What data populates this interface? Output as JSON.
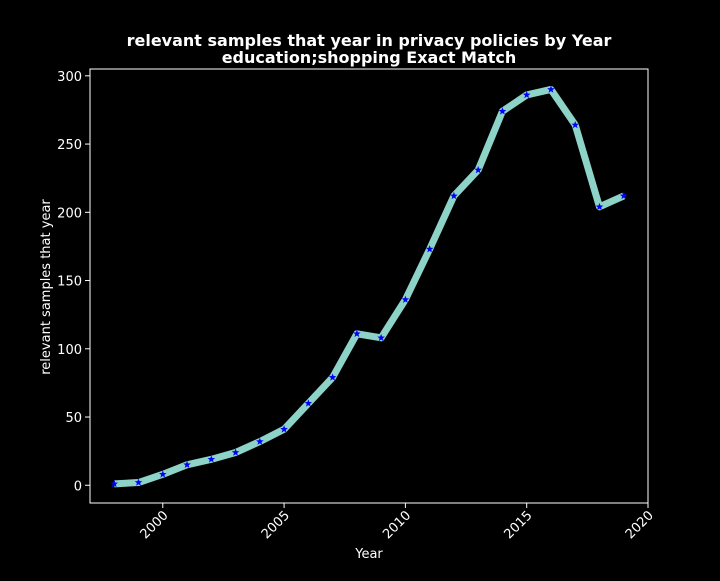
{
  "chart_data": {
    "type": "line",
    "title": "relevant samples that year in privacy policies by Year",
    "subtitle": "education;shopping Exact Match",
    "xlabel": "Year",
    "ylabel": "relevant samples that year",
    "xlim": [
      1997,
      2020
    ],
    "ylim": [
      -13,
      305
    ],
    "x_ticks": [
      2000,
      2005,
      2010,
      2015,
      2020
    ],
    "y_ticks": [
      0,
      50,
      100,
      150,
      200,
      250,
      300
    ],
    "grid": false,
    "background": "#000000",
    "line_color": "#8dd3c7",
    "marker_color": "#0000ff",
    "marker": "star",
    "series": [
      {
        "x": [
          1998,
          1999,
          2000,
          2001,
          2002,
          2003,
          2004,
          2005,
          2006,
          2007,
          2008,
          2009,
          2010,
          2011,
          2012,
          2013,
          2014,
          2015,
          2016,
          2017,
          2018,
          2019
        ],
        "values": [
          1,
          2,
          8,
          15,
          19,
          24,
          32,
          41,
          60,
          79,
          111,
          108,
          136,
          173,
          212,
          231,
          274,
          286,
          290,
          264,
          204,
          212
        ]
      }
    ]
  }
}
